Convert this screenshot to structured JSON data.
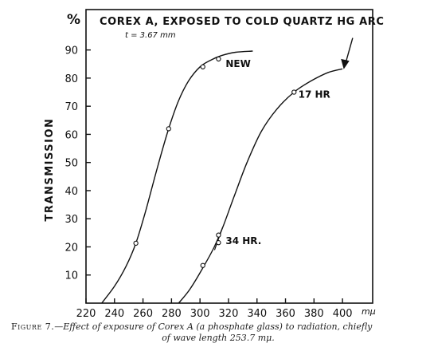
{
  "chart_data": {
    "type": "line",
    "title": "COREX A, EXPOSED TO COLD QUARTZ HG ARC",
    "subtitle": "t = 3.67 mm",
    "ylabel": "TRANSMISSION",
    "y_unit": "%",
    "x_unit": "mμ",
    "xlim": [
      220,
      410
    ],
    "ylim": [
      0,
      95
    ],
    "x_ticks": [
      220,
      240,
      260,
      280,
      300,
      320,
      340,
      360,
      380,
      400
    ],
    "y_ticks": [
      10,
      20,
      30,
      40,
      50,
      60,
      70,
      80,
      90
    ],
    "grid": false,
    "series": [
      {
        "name": "NEW",
        "curve": [
          [
            231,
            0
          ],
          [
            240,
            6
          ],
          [
            248,
            13
          ],
          [
            255,
            21.3
          ],
          [
            262,
            33
          ],
          [
            270,
            48
          ],
          [
            278,
            62
          ],
          [
            285,
            72
          ],
          [
            292,
            79
          ],
          [
            300,
            84
          ],
          [
            308,
            86.5
          ],
          [
            315,
            88
          ],
          [
            325,
            89.2
          ],
          [
            337,
            89.6
          ]
        ],
        "markers": [
          [
            255,
            21.3
          ],
          [
            278,
            62
          ],
          [
            302,
            84
          ],
          [
            313,
            86.8
          ]
        ]
      },
      {
        "name": "17 HR",
        "curve": [
          [
            285,
            0
          ],
          [
            293,
            5
          ],
          [
            303,
            13.4
          ],
          [
            310,
            20
          ],
          [
            316,
            27
          ],
          [
            324,
            38
          ],
          [
            333,
            50
          ],
          [
            343,
            61
          ],
          [
            354,
            69
          ],
          [
            366,
            75
          ],
          [
            378,
            79
          ],
          [
            390,
            82
          ],
          [
            400,
            83.3
          ]
        ],
        "markers": [
          [
            302,
            13.4
          ],
          [
            366,
            75
          ]
        ]
      },
      {
        "name": "34 HR.",
        "markers": [
          [
            313,
            21.5
          ],
          [
            313,
            24.2
          ]
        ]
      }
    ],
    "annotations": [
      {
        "text": "NEW",
        "x": 318,
        "y": 84
      },
      {
        "text": "17 HR",
        "x": 369,
        "y": 73
      },
      {
        "text": "34 HR.",
        "x": 318,
        "y": 21
      },
      {
        "text": "",
        "arrow_to": [
          401,
          83.5
        ]
      }
    ]
  },
  "caption": {
    "figure_number": "Figure 7.",
    "text_line1": "—Effect of exposure of Corex A (a phosphate glass) to radiation, chiefly",
    "text_line2": "of wave length 253.7 mμ."
  }
}
